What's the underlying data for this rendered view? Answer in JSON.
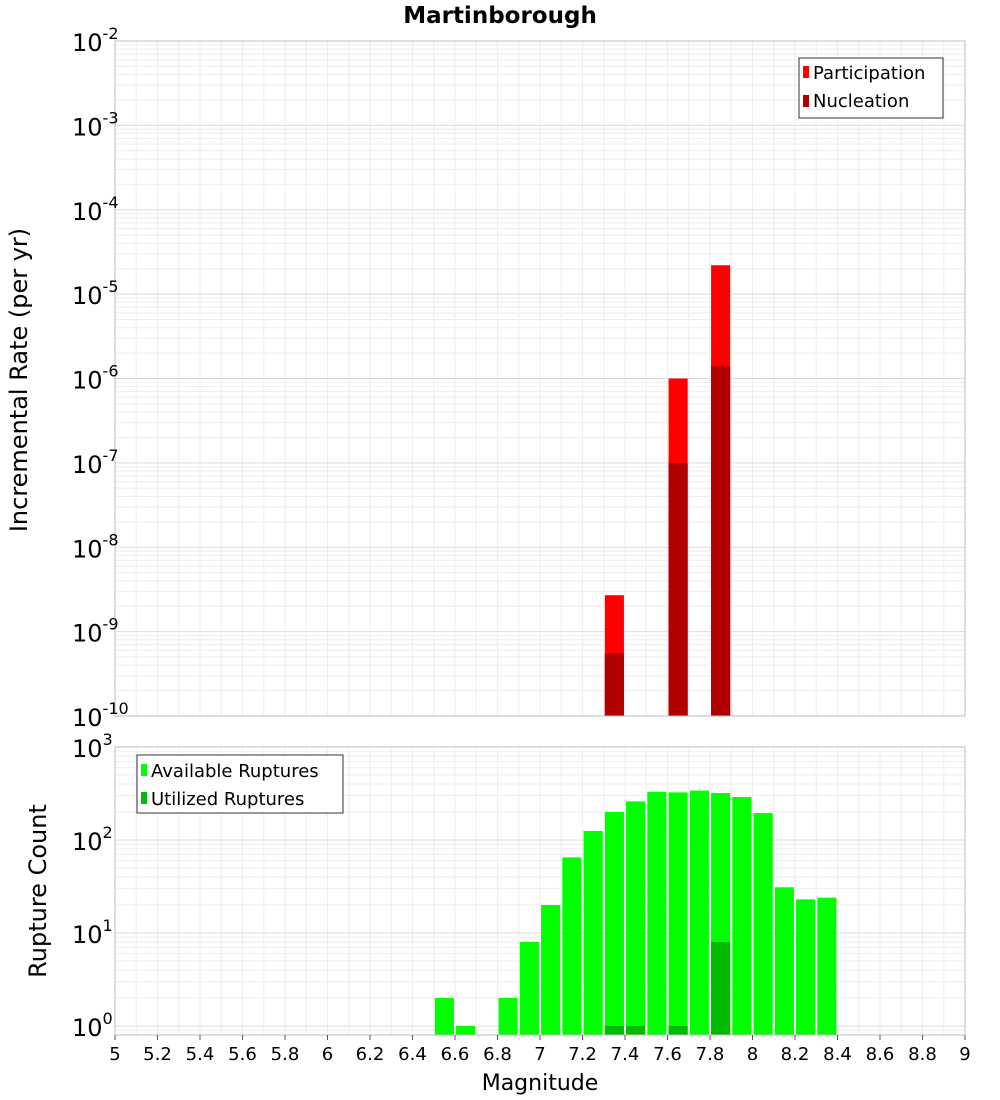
{
  "chart_data": [
    {
      "type": "bar",
      "title": "Martinborough",
      "xlabel": "",
      "ylabel": "Incremental Rate (per yr)",
      "yscale": "log",
      "ylim": [
        1e-10,
        0.01
      ],
      "xlim": [
        5,
        9
      ],
      "y_tick_labels": [
        {
          "base": "10",
          "exp": "-10"
        },
        {
          "base": "10",
          "exp": "-9"
        },
        {
          "base": "10",
          "exp": "-8"
        },
        {
          "base": "10",
          "exp": "-7"
        },
        {
          "base": "10",
          "exp": "-6"
        },
        {
          "base": "10",
          "exp": "-5"
        },
        {
          "base": "10",
          "exp": "-4"
        },
        {
          "base": "10",
          "exp": "-3"
        },
        {
          "base": "10",
          "exp": "-2"
        }
      ],
      "grid": true,
      "legend": "top-right",
      "bar_width": 0.09,
      "series": [
        {
          "name": "Participation",
          "color": "#ff0000",
          "x": [
            7.35,
            7.65,
            7.85
          ],
          "values": [
            2.7e-09,
            1e-06,
            2.2e-05
          ]
        },
        {
          "name": "Nucleation",
          "color": "#b20000",
          "x": [
            7.35,
            7.65,
            7.85
          ],
          "values": [
            5.5e-10,
            1e-07,
            1.4e-06
          ]
        }
      ]
    },
    {
      "type": "bar",
      "title": "",
      "xlabel": "Magnitude",
      "ylabel": "Rupture Count",
      "yscale": "log",
      "ylim": [
        0.8,
        1000
      ],
      "xlim": [
        5,
        9
      ],
      "x_tick_labels": [
        "5",
        "5.2",
        "5.4",
        "5.6",
        "5.8",
        "6",
        "6.2",
        "6.4",
        "6.6",
        "6.8",
        "7",
        "7.2",
        "7.4",
        "7.6",
        "7.8",
        "8",
        "8.2",
        "8.4",
        "8.6",
        "8.8",
        "9"
      ],
      "y_tick_labels": [
        {
          "base": "10",
          "exp": "0"
        },
        {
          "base": "10",
          "exp": "1"
        },
        {
          "base": "10",
          "exp": "2"
        },
        {
          "base": "10",
          "exp": "3"
        }
      ],
      "grid": true,
      "legend": "top-left",
      "bar_width": 0.09,
      "series": [
        {
          "name": "Available Ruptures",
          "color": "#00ff00",
          "x": [
            6.55,
            6.65,
            6.85,
            6.95,
            7.05,
            7.15,
            7.25,
            7.35,
            7.45,
            7.55,
            7.65,
            7.75,
            7.85,
            7.95,
            8.05,
            8.15,
            8.25,
            8.35
          ],
          "values": [
            2,
            1,
            2,
            8,
            20,
            65,
            125,
            200,
            260,
            330,
            325,
            340,
            320,
            290,
            195,
            31,
            23,
            24
          ]
        },
        {
          "name": "Utilized Ruptures",
          "color": "#00bb00",
          "x": [
            7.35,
            7.45,
            7.65,
            7.85
          ],
          "values": [
            1,
            1,
            1,
            8
          ]
        }
      ]
    }
  ]
}
